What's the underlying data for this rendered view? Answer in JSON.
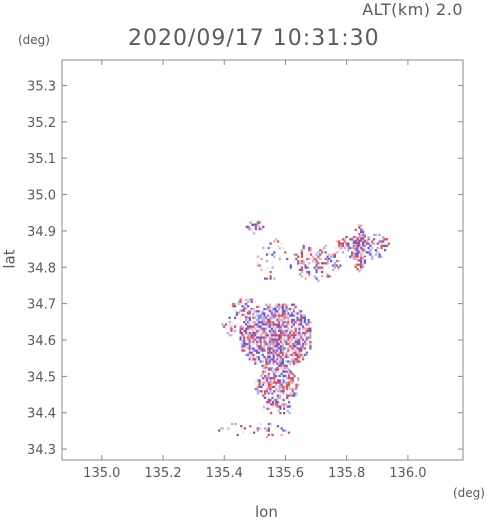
{
  "header": {
    "alt_label": "ALT(km) 2.0",
    "timestamp": "2020/09/17 10:31:30"
  },
  "chart_data": {
    "type": "heatmap",
    "title": "2020/09/17 10:31:30",
    "xlabel": "lon",
    "ylabel": "lat",
    "x_unit": "(deg)",
    "y_unit": "(deg)",
    "xlim": [
      134.87,
      136.18
    ],
    "ylim": [
      34.27,
      35.37
    ],
    "x_ticks": [
      "135.0",
      "135.2",
      "135.4",
      "135.6",
      "135.8",
      "136.0"
    ],
    "y_ticks": [
      "34.3",
      "34.4",
      "34.5",
      "34.6",
      "34.7",
      "34.8",
      "34.9",
      "35.0",
      "35.1",
      "35.2",
      "35.3"
    ],
    "grid": false,
    "colors": {
      "positive": "#e84a4a",
      "negative": "#5a5ae8",
      "neutral": "#f2e6f0"
    },
    "regions": [
      {
        "name": "",
        "lon": [
          135.45,
          135.68
        ],
        "lat": [
          34.52,
          34.7
        ],
        "density": 0.85
      },
      {
        "name": "",
        "lon": [
          135.5,
          135.64
        ],
        "lat": [
          34.42,
          34.52
        ],
        "density": 0.65
      },
      {
        "name": "",
        "lon": [
          135.62,
          135.78
        ],
        "lat": [
          34.76,
          34.86
        ],
        "density": 0.35
      },
      {
        "name": "",
        "lon": [
          135.76,
          135.94
        ],
        "lat": [
          34.82,
          34.89
        ],
        "density": 0.45
      },
      {
        "name": "",
        "lon": [
          135.82,
          135.86
        ],
        "lat": [
          34.78,
          34.92
        ],
        "density": 0.55
      },
      {
        "name": "",
        "lon": [
          135.5,
          135.62
        ],
        "lat": [
          34.76,
          34.88
        ],
        "density": 0.12
      },
      {
        "name": "",
        "lon": [
          135.47,
          135.53
        ],
        "lat": [
          34.89,
          34.93
        ],
        "density": 0.5
      },
      {
        "name": "",
        "lon": [
          135.39,
          135.46
        ],
        "lat": [
          34.61,
          34.66
        ],
        "density": 0.35
      },
      {
        "name": "",
        "lon": [
          135.42,
          135.49
        ],
        "lat": [
          34.66,
          34.72
        ],
        "density": 0.4
      },
      {
        "name": "",
        "lon": [
          135.38,
          135.62
        ],
        "lat": [
          34.33,
          34.37
        ],
        "density": 0.18
      },
      {
        "name": "",
        "lon": [
          135.52,
          135.62
        ],
        "lat": [
          34.39,
          34.43
        ],
        "density": 0.4
      }
    ]
  }
}
